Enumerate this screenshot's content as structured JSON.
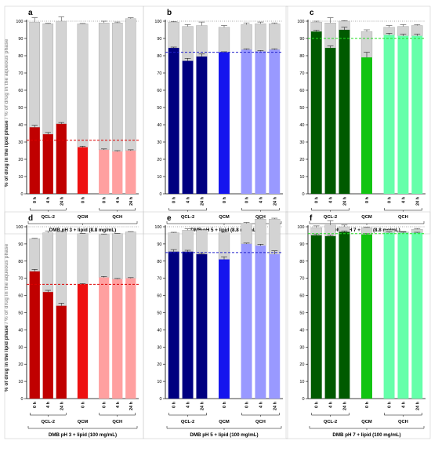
{
  "figure": {
    "ylabel_lipid": "% of drug in the lipid phase",
    "ylabel_sep": " / ",
    "ylabel_aqueous": "% of drug in the aqueous phase",
    "colors": {
      "stacked_remainder": "#d3d3d3",
      "pH3": {
        "QCL-2": "#c00000",
        "QCM": "#ee1111",
        "QCH": "#ffa0a0"
      },
      "pH5": {
        "QCL-2": "#000080",
        "QCM": "#1515ee",
        "QCH": "#9999ff"
      },
      "pH7": {
        "QCL-2": "#005a00",
        "QCM": "#11c411",
        "QCH": "#66ffaa"
      },
      "ref_line": {
        "pH3": "#dd0000",
        "pH5": "#2020cc",
        "pH7": "#22dd22"
      }
    }
  },
  "chart_data": [
    {
      "panel": "a",
      "type": "bar",
      "stacked": true,
      "title": "DMB pH 3 + lipid (8.8 mg/mL)",
      "ylim": [
        0,
        100
      ],
      "yticks": [
        0,
        10,
        20,
        30,
        40,
        50,
        60,
        70,
        80,
        90,
        100
      ],
      "ref_value": 31,
      "total_ref": 100,
      "color_key": "pH3",
      "categories": [
        "0 h",
        "4 h",
        "24 h",
        "0 h",
        "0 h",
        "4 h",
        "24 h"
      ],
      "groups": [
        {
          "label": "QCL-2",
          "span": [
            0,
            2
          ]
        },
        {
          "label": "QCM",
          "span": [
            3,
            3
          ]
        },
        {
          "label": "QCH",
          "span": [
            4,
            6
          ]
        }
      ],
      "series": [
        {
          "name": "lipid",
          "values": [
            38.5,
            34.5,
            40.5,
            27,
            25.5,
            24.5,
            25
          ],
          "errors": [
            1.2,
            1,
            0.8,
            0.6,
            0.5,
            0.5,
            0.5
          ]
        },
        {
          "name": "aqueous",
          "values": [
            61,
            64,
            59.5,
            71.5,
            73.5,
            74.5,
            76.5
          ],
          "errors": [
            2.5,
            0.3,
            2.5,
            0.2,
            1,
            0.5,
            0.5
          ]
        }
      ]
    },
    {
      "panel": "b",
      "type": "bar",
      "stacked": true,
      "title": "DMB pH 5 + lipid (8.8 mg/mL)",
      "ylim": [
        0,
        100
      ],
      "yticks": [
        0,
        10,
        20,
        30,
        40,
        50,
        60,
        70,
        80,
        90,
        100
      ],
      "ref_value": 82,
      "total_ref": 100,
      "color_key": "pH5",
      "categories": [
        "0 h",
        "4 h",
        "24 h",
        "0 h",
        "0 h",
        "4 h",
        "24 h"
      ],
      "groups": [
        {
          "label": "QCL-2",
          "span": [
            0,
            2
          ]
        },
        {
          "label": "QCM",
          "span": [
            3,
            3
          ]
        },
        {
          "label": "QCH",
          "span": [
            4,
            6
          ]
        }
      ],
      "series": [
        {
          "name": "lipid",
          "values": [
            84.5,
            77,
            79.5,
            82,
            83.5,
            82.5,
            83.5
          ],
          "errors": [
            0.5,
            1.5,
            1.5,
            0.3,
            0.5,
            0.5,
            0.5
          ]
        },
        {
          "name": "aqueous",
          "values": [
            15,
            20,
            18,
            14.5,
            14.5,
            16,
            15
          ],
          "errors": [
            0.3,
            1,
            2,
            1,
            1,
            1,
            0.5
          ]
        }
      ]
    },
    {
      "panel": "c",
      "type": "bar",
      "stacked": true,
      "title": "DMB pH 7 + lipid (8.8 mg/mL)",
      "ylim": [
        0,
        100
      ],
      "yticks": [
        0,
        10,
        20,
        30,
        40,
        50,
        60,
        70,
        80,
        90,
        100
      ],
      "ref_value": 90,
      "total_ref": 100,
      "color_key": "pH7",
      "categories": [
        "0 h",
        "4 h",
        "24 h",
        "0 h",
        "0 h",
        "4 h",
        "24 h"
      ],
      "groups": [
        {
          "label": "QCL-2",
          "span": [
            0,
            2
          ]
        },
        {
          "label": "QCM",
          "span": [
            3,
            3
          ]
        },
        {
          "label": "QCH",
          "span": [
            4,
            6
          ]
        }
      ],
      "series": [
        {
          "name": "lipid",
          "values": [
            94,
            84.5,
            95,
            79,
            92,
            91.5,
            91.5
          ],
          "errors": [
            0.8,
            1.2,
            1.5,
            3,
            1,
            1,
            1
          ]
        },
        {
          "name": "aqueous",
          "values": [
            5.5,
            14.5,
            5,
            15,
            4.5,
            5.5,
            6
          ],
          "errors": [
            0.5,
            3,
            0.3,
            1,
            1,
            1,
            0.5
          ]
        }
      ]
    },
    {
      "panel": "d",
      "type": "bar",
      "stacked": true,
      "title": "DMB pH 3 + lipid (100 mg/mL)",
      "ylim": [
        0,
        100
      ],
      "yticks": [
        0,
        10,
        20,
        30,
        40,
        50,
        60,
        70,
        80,
        90,
        100
      ],
      "ref_value": 66.5,
      "total_ref": 100,
      "color_key": "pH3",
      "categories": [
        "0 h",
        "4 h",
        "24 h",
        "0 h",
        "0 h",
        "4 h",
        "24 h"
      ],
      "groups": [
        {
          "label": "QCL-2",
          "span": [
            0,
            2
          ]
        },
        {
          "label": "QCM",
          "span": [
            3,
            3
          ]
        },
        {
          "label": "QCH",
          "span": [
            4,
            6
          ]
        }
      ],
      "series": [
        {
          "name": "lipid",
          "values": [
            74,
            62,
            54,
            66.5,
            70.5,
            69.5,
            70
          ],
          "errors": [
            1.2,
            1,
            1.5,
            0.4,
            0.6,
            0.4,
            0.4
          ]
        },
        {
          "name": "aqueous",
          "values": [
            19,
            34.5,
            43,
            29.5,
            25,
            26.5,
            27
          ],
          "errors": [
            0.3,
            1,
            0.5,
            0.2,
            0.3,
            0.2,
            0.2
          ]
        }
      ]
    },
    {
      "panel": "e",
      "type": "bar",
      "stacked": true,
      "title": "DMB pH 5 + lipid (100 mg/mL)",
      "ylim": [
        0,
        100
      ],
      "yticks": [
        0,
        10,
        20,
        30,
        40,
        50,
        60,
        70,
        80,
        90,
        100
      ],
      "ref_value": 85,
      "total_ref": 100,
      "color_key": "pH5",
      "categories": [
        "0 h",
        "4 h",
        "24 h",
        "0 h",
        "0 h",
        "4 h",
        "24 h"
      ],
      "groups": [
        {
          "label": "QCL-2",
          "span": [
            0,
            2
          ]
        },
        {
          "label": "QCM",
          "span": [
            3,
            3
          ]
        },
        {
          "label": "QCH",
          "span": [
            4,
            6
          ]
        }
      ],
      "series": [
        {
          "name": "lipid",
          "values": [
            85.5,
            85.5,
            84,
            81,
            90,
            89,
            84
          ],
          "errors": [
            1.2,
            0.8,
            0.5,
            1.5,
            0.5,
            0.8,
            2
          ]
        },
        {
          "name": "aqueous",
          "values": [
            11,
            12.5,
            14,
            15.5,
            12,
            15.5,
            20.5
          ],
          "errors": [
            0.3,
            0.8,
            0.5,
            0.5,
            0.5,
            0.5,
            0.5
          ]
        }
      ]
    },
    {
      "panel": "f",
      "type": "bar",
      "stacked": true,
      "title": "DMB pH 7 + lipid (100 mg/mL)",
      "ylim": [
        0,
        100
      ],
      "yticks": [
        0,
        10,
        20,
        30,
        40,
        50,
        60,
        70,
        80,
        90,
        100
      ],
      "ref_value": 96,
      "total_ref": 100,
      "color_key": "pH7",
      "categories": [
        "0 h",
        "4 h",
        "24 h",
        "0 h",
        "0 h",
        "4 h",
        "24 h"
      ],
      "groups": [
        {
          "label": "QCL-2",
          "span": [
            0,
            2
          ]
        },
        {
          "label": "QCM",
          "span": [
            3,
            3
          ]
        },
        {
          "label": "QCH",
          "span": [
            4,
            6
          ]
        }
      ],
      "series": [
        {
          "name": "lipid",
          "values": [
            95,
            94.5,
            97,
            95.5,
            96.5,
            96.5,
            96.5
          ],
          "errors": [
            0.8,
            0.5,
            0.5,
            0.5,
            0.5,
            0.4,
            0.3
          ]
        },
        {
          "name": "aqueous",
          "values": [
            4.5,
            6.5,
            3,
            4,
            1.5,
            0.5,
            2
          ],
          "errors": [
            1,
            2.5,
            1,
            0.3,
            0.5,
            0.2,
            0.5
          ]
        }
      ]
    }
  ]
}
